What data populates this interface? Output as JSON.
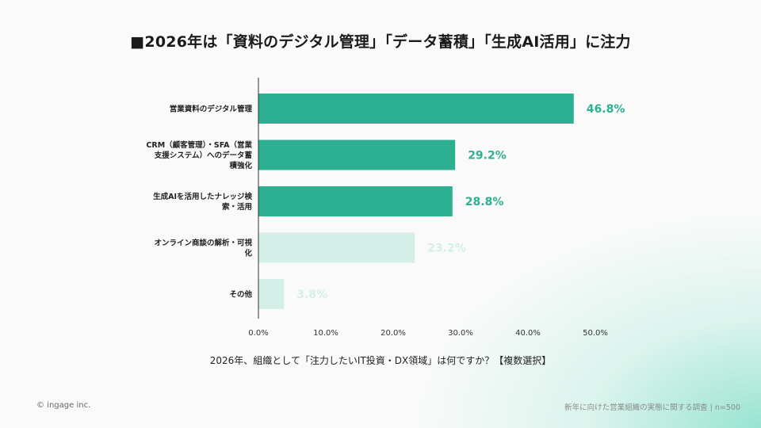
{
  "title": "■2026年は「資料のデジタル管理」「データ蓄積」「生成AI活用」に注力",
  "caption": "2026年、組織として「注力したいIT投資・DX領域」は何ですか？【複数選択】",
  "copyright": "© ingage inc.",
  "source": "新年に向けた営業組織の実態に関する調査 | n=500",
  "colors": {
    "highlight": "#2daf92",
    "muted": "#d4efe8",
    "axis": "#333333"
  },
  "chart_data": {
    "type": "bar",
    "orientation": "horizontal",
    "categories": [
      [
        "営業資料のデジタル管理"
      ],
      [
        "CRM（顧客管理）・SFA（営業",
        "支援システム）へのデータ蓄",
        "積強化"
      ],
      [
        "生成AIを活用したナレッジ検",
        "索・活用"
      ],
      [
        "オンライン商談の解析・可視",
        "化"
      ],
      [
        "その他"
      ]
    ],
    "values": [
      46.8,
      29.2,
      28.8,
      23.2,
      3.8
    ],
    "value_labels": [
      "46.8%",
      "29.2%",
      "28.8%",
      "23.2%",
      "3.8%"
    ],
    "highlighted": [
      true,
      true,
      true,
      false,
      false
    ],
    "xlim": [
      0,
      50
    ],
    "ticks": [
      "0.0%",
      "10.0%",
      "20.0%",
      "30.0%",
      "40.0%",
      "50.0%"
    ],
    "grid": false
  }
}
